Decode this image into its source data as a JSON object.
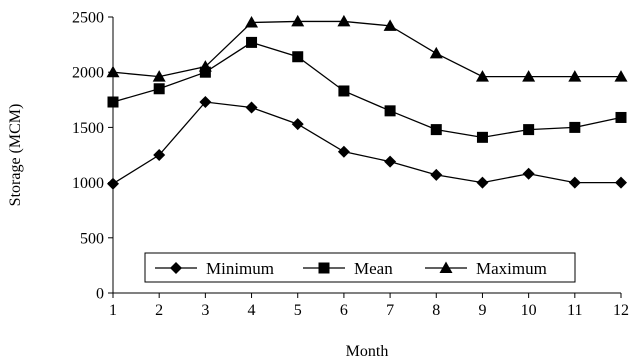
{
  "chart_data": {
    "type": "line",
    "x": [
      1,
      2,
      3,
      4,
      5,
      6,
      7,
      8,
      9,
      10,
      11,
      12
    ],
    "series": [
      {
        "name": "Minimum",
        "marker": "diamond",
        "values": [
          990,
          1250,
          1730,
          1680,
          1530,
          1280,
          1190,
          1070,
          1000,
          1080,
          1000,
          1000
        ]
      },
      {
        "name": "Mean",
        "marker": "square",
        "values": [
          1730,
          1850,
          2000,
          2270,
          2140,
          1830,
          1650,
          1480,
          1410,
          1480,
          1500,
          1590
        ]
      },
      {
        "name": "Maximum",
        "marker": "triangle",
        "values": [
          2000,
          1960,
          2050,
          2450,
          2460,
          2460,
          2420,
          2170,
          1960,
          1960,
          1960,
          1960
        ]
      }
    ],
    "xlabel": "Month",
    "ylabel": "Storage (MCM)",
    "xlim": [
      1,
      12
    ],
    "ylim": [
      0,
      2500
    ],
    "xticks": [
      "1",
      "2",
      "3",
      "4",
      "5",
      "6",
      "7",
      "8",
      "9",
      "10",
      "11",
      "12"
    ],
    "yticks": [
      "0",
      "500",
      "1000",
      "1500",
      "2000",
      "2500"
    ],
    "grid": false,
    "legend": "bottom-center, inside plot",
    "colors": {
      "line": "#000000",
      "marker": "#000000",
      "axis": "#000000"
    }
  }
}
